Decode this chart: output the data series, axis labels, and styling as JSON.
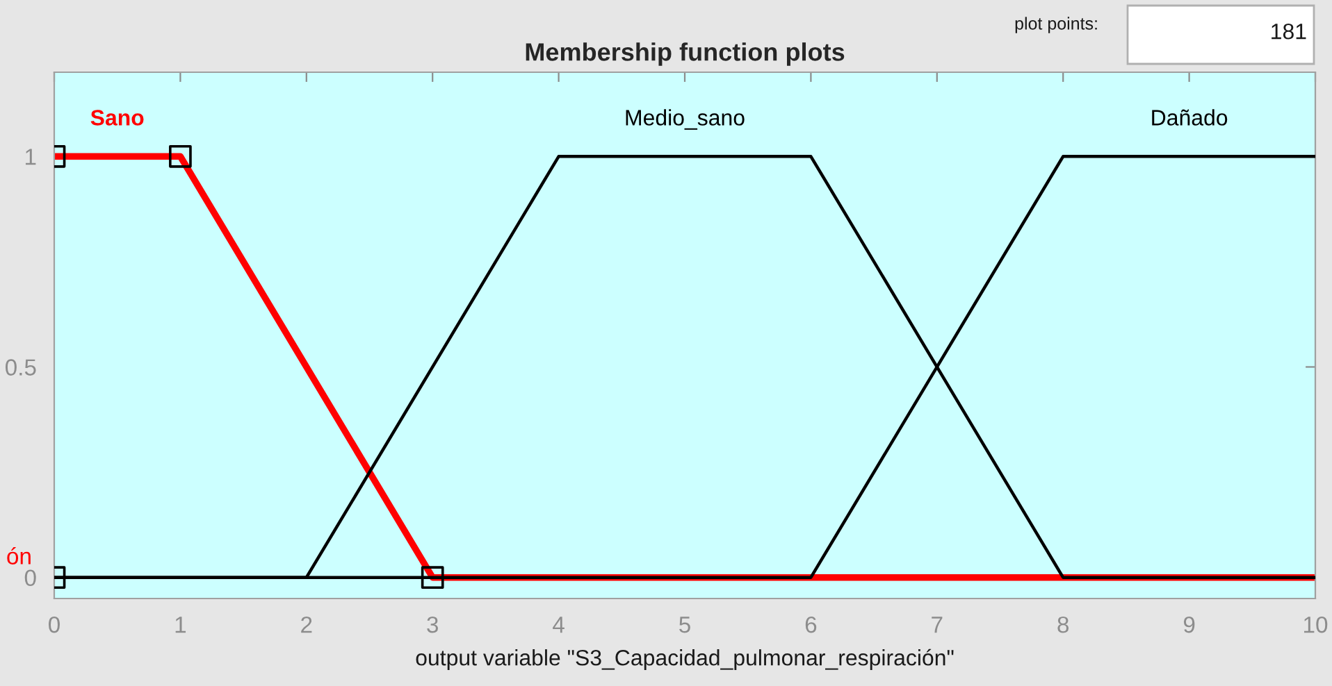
{
  "chart_data": {
    "type": "line",
    "title": "Membership function plots",
    "xlabel": "output variable \"S3_Capacidad_pulmonar_respiración\"",
    "xlim": [
      0,
      10
    ],
    "ylim": [
      -0.05,
      1.2
    ],
    "xticks": [
      0,
      1,
      2,
      3,
      4,
      5,
      6,
      7,
      8,
      9,
      10
    ],
    "yticks": [
      0,
      0.5,
      1
    ],
    "series": [
      {
        "name": "Sano",
        "color": "#ff0000",
        "x": [
          0,
          1,
          3,
          10
        ],
        "values": [
          1,
          1,
          0,
          0
        ]
      },
      {
        "name": "Medio_sano",
        "color": "#000000",
        "x": [
          0,
          2,
          4,
          6,
          8,
          10
        ],
        "values": [
          0,
          0,
          1,
          1,
          0,
          0
        ]
      },
      {
        "name": "Dañado",
        "color": "#000000",
        "x": [
          0,
          6,
          8,
          10
        ],
        "values": [
          0,
          0,
          1,
          1
        ]
      },
      {
        "type": "scatter",
        "marker": "square",
        "color": "#000000",
        "x": [
          0,
          0,
          1,
          3
        ],
        "values": [
          0,
          1,
          1,
          0
        ]
      }
    ],
    "annotations": [
      "plot points:",
      "181",
      "ón"
    ]
  }
}
